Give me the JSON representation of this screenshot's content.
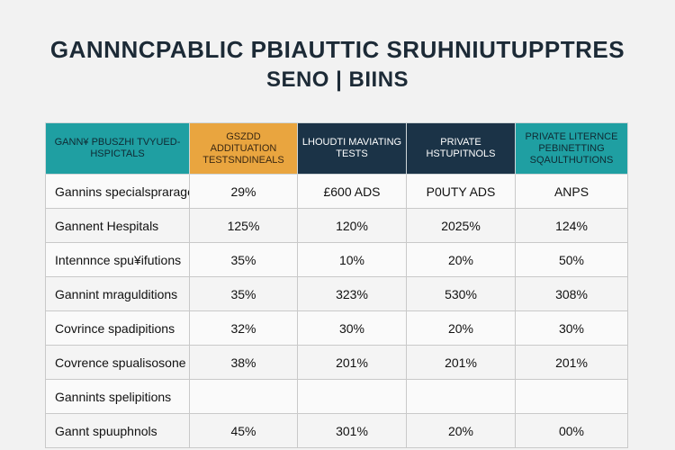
{
  "title": {
    "line1": "GANNNCPABLIC PBIAUTTIC SRUHNIUTUPPTRES",
    "line2": "SENO | BIINS"
  },
  "colors": {
    "teal": "#1f9fa2",
    "orange": "#e9a53f",
    "navy": "#1b3347"
  },
  "table": {
    "headers": [
      "GANN¥ PBUSZHI TVYUED-HSPICTALS",
      "GSZDD ADDITUATION TESTSNDINEALS",
      "LHOUDTI MAVIATING TESTS",
      "PRIVATE HSTUPITNOLS",
      "PRIVATE LITERNCE PEBINETTING SQAULTHUTIONS"
    ],
    "rows": [
      [
        "Gannins specialsprarage",
        "29%",
        "£600 ADS",
        "P0UTY ADS",
        "ANPS"
      ],
      [
        "Gannent Hespitals",
        "125%",
        "120%",
        "2025%",
        "124%"
      ],
      [
        "Intennnce spu¥ifutions",
        "35%",
        "10%",
        "20%",
        "50%"
      ],
      [
        "Gannint mragulditions",
        "35%",
        "323%",
        "530%",
        "308%"
      ],
      [
        "Covrince spadipitions",
        "32%",
        "30%",
        "20%",
        "30%"
      ],
      [
        "Covrence spualisosone",
        "38%",
        "201%",
        "201%",
        "201%"
      ],
      [
        "Gannints spelipitions",
        "",
        "",
        "",
        ""
      ],
      [
        "Gannt spuuphnols",
        "45%",
        "301%",
        "20%",
        "00%"
      ]
    ]
  }
}
